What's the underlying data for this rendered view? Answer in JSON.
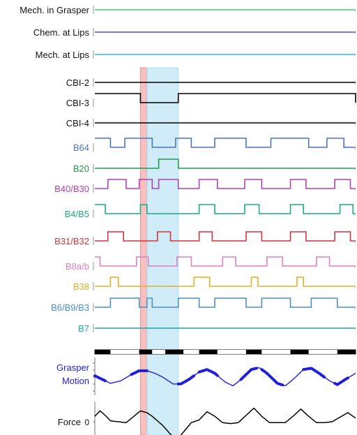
{
  "chart_data": {
    "type": "line",
    "x_range": [
      0,
      100
    ],
    "colors": {
      "shade_red": "#f28b8b",
      "shade_blue": "#a8dcf2",
      "label_black": "#111111",
      "bar_black": "#000000"
    },
    "highlight_regions": [
      {
        "name": "red-window",
        "x": [
          17.5,
          20.0
        ],
        "color": "#f28b8b"
      },
      {
        "name": "blue-window",
        "x": [
          20.0,
          32.0
        ],
        "color": "#a8dcf2"
      }
    ],
    "rows": [
      {
        "label": "Mech. in Grasper",
        "color": "#3ccf6e",
        "label_color": "#111111",
        "intervals": []
      },
      {
        "label": "Chem. at Lips",
        "color": "#4a4fc0",
        "label_color": "#111111",
        "intervals": []
      },
      {
        "label": "Mech. at Lips",
        "color": "#2fb8e6",
        "label_color": "#111111",
        "intervals": []
      },
      {
        "label": "CBI-2",
        "color": "#000000",
        "label_color": "#111111",
        "intervals": []
      },
      {
        "label": "CBI-3",
        "color": "#000000",
        "label_color": "#111111",
        "on_is_high": true,
        "intervals": [
          [
            0,
            17.5
          ],
          [
            32,
            100
          ]
        ]
      },
      {
        "label": "CBI-4",
        "color": "#000000",
        "label_color": "#111111",
        "intervals": []
      },
      {
        "label": "B64",
        "color": "#4a74c0",
        "label_color": "#4a74c0",
        "intervals": [
          [
            0,
            6
          ],
          [
            11.5,
            22
          ],
          [
            31,
            37
          ],
          [
            46,
            58
          ],
          [
            67.5,
            82
          ],
          [
            89,
            95.5
          ]
        ]
      },
      {
        "label": "B20",
        "color": "#1f9a4a",
        "label_color": "#1f9a4a",
        "intervals": [
          [
            24.5,
            32
          ]
        ]
      },
      {
        "label": "B40/B30",
        "color": "#b040b0",
        "label_color": "#b040b0",
        "intervals": [
          [
            5,
            12
          ],
          [
            17,
            22
          ],
          [
            24.5,
            32
          ],
          [
            40,
            47
          ],
          [
            57.5,
            64
          ],
          [
            75,
            81
          ],
          [
            92,
            98
          ]
        ]
      },
      {
        "label": "B4/B5",
        "color": "#1aaa84",
        "label_color": "#1aaa84",
        "intervals": [
          [
            0,
            4
          ],
          [
            17.5,
            20
          ],
          [
            40,
            46
          ],
          [
            57.5,
            63
          ],
          [
            75,
            80
          ],
          [
            94,
            99
          ]
        ]
      },
      {
        "label": "B31/B32",
        "color": "#d0343b",
        "label_color": "#d0343b",
        "intervals": [
          [
            5,
            11
          ],
          [
            24,
            29
          ],
          [
            40,
            45
          ],
          [
            58,
            64
          ],
          [
            75,
            81
          ],
          [
            92,
            98
          ]
        ]
      },
      {
        "label": "B8a/b",
        "color": "#e07fc0",
        "label_color": "#e07fc0",
        "intervals": [
          [
            0,
            2
          ],
          [
            16,
            20.5
          ],
          [
            31.5,
            37
          ],
          [
            49,
            54
          ],
          [
            66,
            72
          ],
          [
            85,
            90
          ]
        ]
      },
      {
        "label": "B38",
        "color": "#e3b025",
        "label_color": "#e3b025",
        "intervals": [
          [
            6,
            9
          ],
          [
            38,
            44
          ],
          [
            60,
            62.5
          ],
          [
            77.5,
            80
          ]
        ]
      },
      {
        "label": "B6/B9/B3",
        "color": "#4a90c4",
        "label_color": "#4a90c4",
        "intervals": [
          [
            6,
            17
          ],
          [
            20,
            22
          ],
          [
            32,
            40
          ],
          [
            46,
            58
          ],
          [
            64,
            75
          ],
          [
            83,
            93
          ]
        ]
      },
      {
        "label": "B7",
        "color": "#1fa3ad",
        "label_color": "#1fa3ad",
        "intervals": []
      }
    ],
    "phase_bar": [
      {
        "x": [
          0,
          6
        ],
        "color": "black"
      },
      {
        "x": [
          6,
          17
        ],
        "color": "white"
      },
      {
        "x": [
          17,
          22
        ],
        "color": "black"
      },
      {
        "x": [
          22,
          27
        ],
        "color": "white"
      },
      {
        "x": [
          27,
          34
        ],
        "color": "black"
      },
      {
        "x": [
          34,
          40
        ],
        "color": "white"
      },
      {
        "x": [
          40,
          47
        ],
        "color": "black"
      },
      {
        "x": [
          47,
          58
        ],
        "color": "white"
      },
      {
        "x": [
          58,
          64
        ],
        "color": "black"
      },
      {
        "x": [
          64,
          75
        ],
        "color": "white"
      },
      {
        "x": [
          75,
          82
        ],
        "color": "black"
      },
      {
        "x": [
          82,
          93
        ],
        "color": "white"
      },
      {
        "x": [
          93,
          100
        ],
        "color": "black"
      }
    ],
    "grasper_motion": {
      "label_line1": "Grasper",
      "label_line2": "Motion",
      "color": "#1f20d8",
      "ylim": [
        -1,
        1
      ],
      "x": [
        0,
        3,
        6,
        10,
        14,
        17,
        20,
        23,
        26,
        30,
        33,
        36,
        40,
        43,
        46,
        50,
        53,
        56,
        60,
        63,
        66,
        70,
        73,
        76,
        80,
        83,
        86,
        90,
        93,
        96,
        100
      ],
      "y": [
        0.1,
        -0.2,
        -0.5,
        -0.3,
        0.2,
        0.5,
        0.5,
        0.3,
        0.0,
        -0.55,
        -0.55,
        -0.2,
        0.4,
        0.6,
        0.3,
        -0.4,
        -0.7,
        -0.2,
        0.6,
        0.75,
        0.3,
        -0.5,
        -0.7,
        -0.2,
        0.6,
        0.7,
        0.3,
        -0.3,
        -0.6,
        -0.2,
        0.3
      ],
      "thick_segments": [
        [
          0,
          4
        ],
        [
          14,
          20
        ],
        [
          32,
          38
        ],
        [
          40,
          47
        ],
        [
          56,
          62
        ],
        [
          64,
          72
        ],
        [
          80,
          88
        ],
        [
          92,
          97
        ]
      ]
    },
    "force": {
      "label": "Force",
      "zero_tick": "0",
      "color": "#000000",
      "ylim": [
        -1,
        1
      ],
      "x": [
        0,
        2,
        4,
        6,
        9,
        12,
        15,
        17.5,
        20,
        22,
        26,
        30,
        32,
        35,
        37,
        40,
        43,
        46,
        49,
        52,
        55,
        58,
        61,
        64,
        67,
        70,
        73,
        76,
        79,
        82,
        85,
        88,
        91,
        94,
        97,
        100
      ],
      "y": [
        0.3,
        0.6,
        0.35,
        0.05,
        0.0,
        -0.05,
        0.3,
        0.6,
        0.5,
        0.3,
        -0.2,
        -0.85,
        -0.9,
        -0.4,
        -0.05,
        0.1,
        0.55,
        0.3,
        -0.05,
        -0.1,
        -0.05,
        0.35,
        0.75,
        0.3,
        -0.05,
        -0.05,
        -0.05,
        0.3,
        0.7,
        0.3,
        -0.05,
        -0.05,
        0.0,
        0.25,
        0.5,
        0.2
      ]
    }
  }
}
